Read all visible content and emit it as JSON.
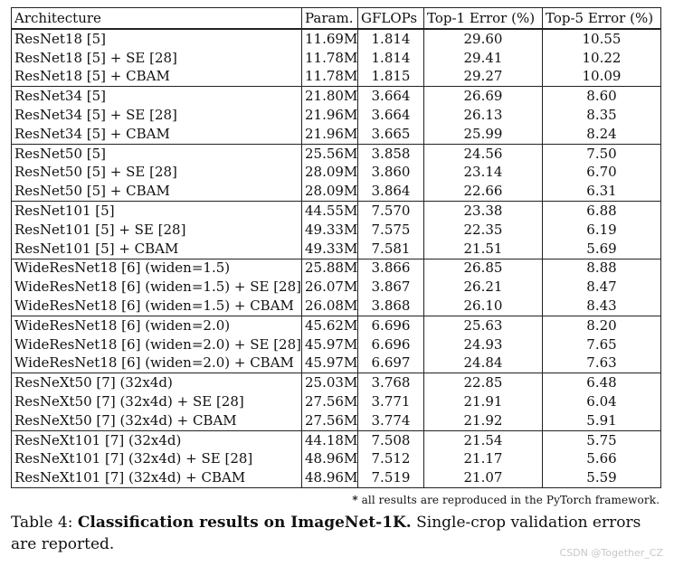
{
  "table": {
    "headers": {
      "architecture": "Architecture",
      "params": "Param.",
      "gflops": "GFLOPs",
      "top1": "Top-1 Error (%)",
      "top5": "Top-5 Error (%)"
    },
    "groups": [
      [
        {
          "arch": "ResNet18 [5]",
          "params": "11.69M",
          "gflops": "1.814",
          "top1": "29.60",
          "top5": "10.55",
          "top1_bold": false,
          "top5_bold": false
        },
        {
          "arch": "ResNet18 [5] + SE [28]",
          "params": "11.78M",
          "gflops": "1.814",
          "top1": "29.41",
          "top5": "10.22",
          "top1_bold": false,
          "top5_bold": false
        },
        {
          "arch": "ResNet18 [5] + CBAM",
          "params": "11.78M",
          "gflops": "1.815",
          "top1": "29.27",
          "top5": "10.09",
          "top1_bold": true,
          "top5_bold": true
        }
      ],
      [
        {
          "arch": "ResNet34 [5]",
          "params": "21.80M",
          "gflops": "3.664",
          "top1": "26.69",
          "top5": "8.60",
          "top1_bold": false,
          "top5_bold": false
        },
        {
          "arch": "ResNet34 [5] + SE [28]",
          "params": "21.96M",
          "gflops": "3.664",
          "top1": "26.13",
          "top5": "8.35",
          "top1_bold": false,
          "top5_bold": false
        },
        {
          "arch": "ResNet34 [5] + CBAM",
          "params": "21.96M",
          "gflops": "3.665",
          "top1": "25.99",
          "top5": "8.24",
          "top1_bold": true,
          "top5_bold": true
        }
      ],
      [
        {
          "arch": "ResNet50 [5]",
          "params": "25.56M",
          "gflops": "3.858",
          "top1": "24.56",
          "top5": "7.50",
          "top1_bold": false,
          "top5_bold": false
        },
        {
          "arch": "ResNet50 [5] + SE [28]",
          "params": "28.09M",
          "gflops": "3.860",
          "top1": "23.14",
          "top5": "6.70",
          "top1_bold": false,
          "top5_bold": false
        },
        {
          "arch": "ResNet50 [5] + CBAM",
          "params": "28.09M",
          "gflops": "3.864",
          "top1": "22.66",
          "top5": "6.31",
          "top1_bold": true,
          "top5_bold": true
        }
      ],
      [
        {
          "arch": "ResNet101 [5]",
          "params": "44.55M",
          "gflops": "7.570",
          "top1": "23.38",
          "top5": "6.88",
          "top1_bold": false,
          "top5_bold": false
        },
        {
          "arch": "ResNet101 [5] + SE [28]",
          "params": "49.33M",
          "gflops": "7.575",
          "top1": "22.35",
          "top5": "6.19",
          "top1_bold": false,
          "top5_bold": false
        },
        {
          "arch": "ResNet101 [5] + CBAM",
          "params": "49.33M",
          "gflops": "7.581",
          "top1": "21.51",
          "top5": "5.69",
          "top1_bold": true,
          "top5_bold": true
        }
      ],
      [
        {
          "arch": "WideResNet18 [6] (widen=1.5)",
          "params": "25.88M",
          "gflops": "3.866",
          "top1": "26.85",
          "top5": "8.88",
          "top1_bold": false,
          "top5_bold": false
        },
        {
          "arch": "WideResNet18 [6] (widen=1.5) + SE [28]",
          "params": "26.07M",
          "gflops": "3.867",
          "top1": "26.21",
          "top5": "8.47",
          "top1_bold": false,
          "top5_bold": false
        },
        {
          "arch": "WideResNet18 [6] (widen=1.5) + CBAM",
          "params": "26.08M",
          "gflops": "3.868",
          "top1": "26.10",
          "top5": "8.43",
          "top1_bold": true,
          "top5_bold": true
        }
      ],
      [
        {
          "arch": "WideResNet18 [6] (widen=2.0)",
          "params": "45.62M",
          "gflops": "6.696",
          "top1": "25.63",
          "top5": "8.20",
          "top1_bold": false,
          "top5_bold": false
        },
        {
          "arch": "WideResNet18 [6] (widen=2.0) + SE [28]",
          "params": "45.97M",
          "gflops": "6.696",
          "top1": "24.93",
          "top5": "7.65",
          "top1_bold": false,
          "top5_bold": false
        },
        {
          "arch": "WideResNet18 [6] (widen=2.0) + CBAM",
          "params": "45.97M",
          "gflops": "6.697",
          "top1": "24.84",
          "top5": "7.63",
          "top1_bold": true,
          "top5_bold": true
        }
      ],
      [
        {
          "arch": "ResNeXt50 [7] (32x4d)",
          "params": "25.03M",
          "gflops": "3.768",
          "top1": "22.85",
          "top5": "6.48",
          "top1_bold": false,
          "top5_bold": false
        },
        {
          "arch": "ResNeXt50 [7] (32x4d) + SE [28]",
          "params": "27.56M",
          "gflops": "3.771",
          "top1": "21.91",
          "top5": "6.04",
          "top1_bold": true,
          "top5_bold": false
        },
        {
          "arch": "ResNeXt50 [7] (32x4d) + CBAM",
          "params": "27.56M",
          "gflops": "3.774",
          "top1": "21.92",
          "top5": "5.91",
          "top1_bold": false,
          "top5_bold": true
        }
      ],
      [
        {
          "arch": "ResNeXt101 [7] (32x4d)",
          "params": "44.18M",
          "gflops": "7.508",
          "top1": "21.54",
          "top5": "5.75",
          "top1_bold": false,
          "top5_bold": false
        },
        {
          "arch": "ResNeXt101 [7] (32x4d) + SE [28]",
          "params": "48.96M",
          "gflops": "7.512",
          "top1": "21.17",
          "top5": "5.66",
          "top1_bold": false,
          "top5_bold": false
        },
        {
          "arch": "ResNeXt101 [7] (32x4d) + CBAM",
          "params": "48.96M",
          "gflops": "7.519",
          "top1": "21.07",
          "top5": "5.59",
          "top1_bold": true,
          "top5_bold": true
        }
      ]
    ]
  },
  "footnote": {
    "star": "*",
    "text": "all results are reproduced in the PyTorch framework."
  },
  "caption": {
    "label": "Table 4:",
    "title": "Classification results on ImageNet-1K.",
    "body": "Single-crop validation errors are reported."
  },
  "watermark": "CSDN @Together_CZ"
}
